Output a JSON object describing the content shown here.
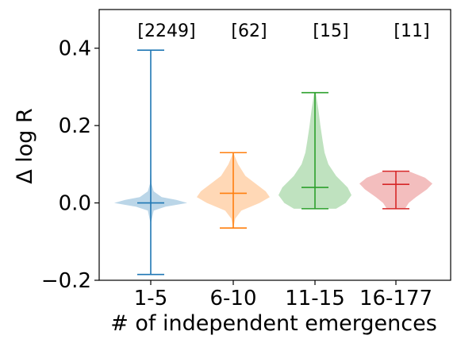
{
  "chart_data": {
    "type": "violin",
    "xlabel": "# of independent emergences",
    "ylabel": "Δ log R",
    "ylim": [
      -0.2,
      0.5
    ],
    "yticks": [
      -0.2,
      0.0,
      0.2,
      0.4
    ],
    "ytick_labels": [
      "−0.2",
      "0.0",
      "0.2",
      "0.4"
    ],
    "grid": false,
    "categories": [
      "1-5",
      "6-10",
      "11-15",
      "16-177"
    ],
    "counts": [
      "[2249]",
      "[62]",
      "[15]",
      "[11]"
    ],
    "series": [
      {
        "category": "1-5",
        "color": "#1f77b4",
        "min": -0.185,
        "median": 0.0,
        "max": 0.395,
        "density": [
          [
            -0.185,
            0.0
          ],
          [
            -0.05,
            0.01
          ],
          [
            -0.02,
            0.08
          ],
          [
            -0.01,
            0.4
          ],
          [
            0.0,
            1.0
          ],
          [
            0.008,
            0.7
          ],
          [
            0.015,
            0.3
          ],
          [
            0.03,
            0.08
          ],
          [
            0.05,
            0.02
          ],
          [
            0.1,
            0.005
          ],
          [
            0.395,
            0.0
          ]
        ]
      },
      {
        "category": "6-10",
        "color": "#ff7f0e",
        "min": -0.065,
        "median": 0.025,
        "max": 0.13,
        "density": [
          [
            -0.065,
            0.0
          ],
          [
            -0.04,
            0.05
          ],
          [
            -0.02,
            0.2
          ],
          [
            0.0,
            0.65
          ],
          [
            0.015,
            0.9
          ],
          [
            0.03,
            0.8
          ],
          [
            0.05,
            0.55
          ],
          [
            0.07,
            0.3
          ],
          [
            0.1,
            0.12
          ],
          [
            0.13,
            0.0
          ]
        ]
      },
      {
        "category": "11-15",
        "color": "#2ca02c",
        "min": -0.015,
        "median": 0.04,
        "max": 0.285,
        "density": [
          [
            -0.015,
            0.55
          ],
          [
            0.0,
            0.8
          ],
          [
            0.02,
            0.95
          ],
          [
            0.04,
            0.85
          ],
          [
            0.07,
            0.55
          ],
          [
            0.1,
            0.35
          ],
          [
            0.13,
            0.25
          ],
          [
            0.16,
            0.2
          ],
          [
            0.2,
            0.14
          ],
          [
            0.24,
            0.09
          ],
          [
            0.285,
            0.02
          ]
        ]
      },
      {
        "category": "16-177",
        "color": "#d62728",
        "min": -0.015,
        "median": 0.048,
        "max": 0.082,
        "density": [
          [
            -0.015,
            0.25
          ],
          [
            0.0,
            0.35
          ],
          [
            0.015,
            0.55
          ],
          [
            0.035,
            0.85
          ],
          [
            0.05,
            1.0
          ],
          [
            0.065,
            0.8
          ],
          [
            0.082,
            0.35
          ]
        ]
      }
    ]
  }
}
